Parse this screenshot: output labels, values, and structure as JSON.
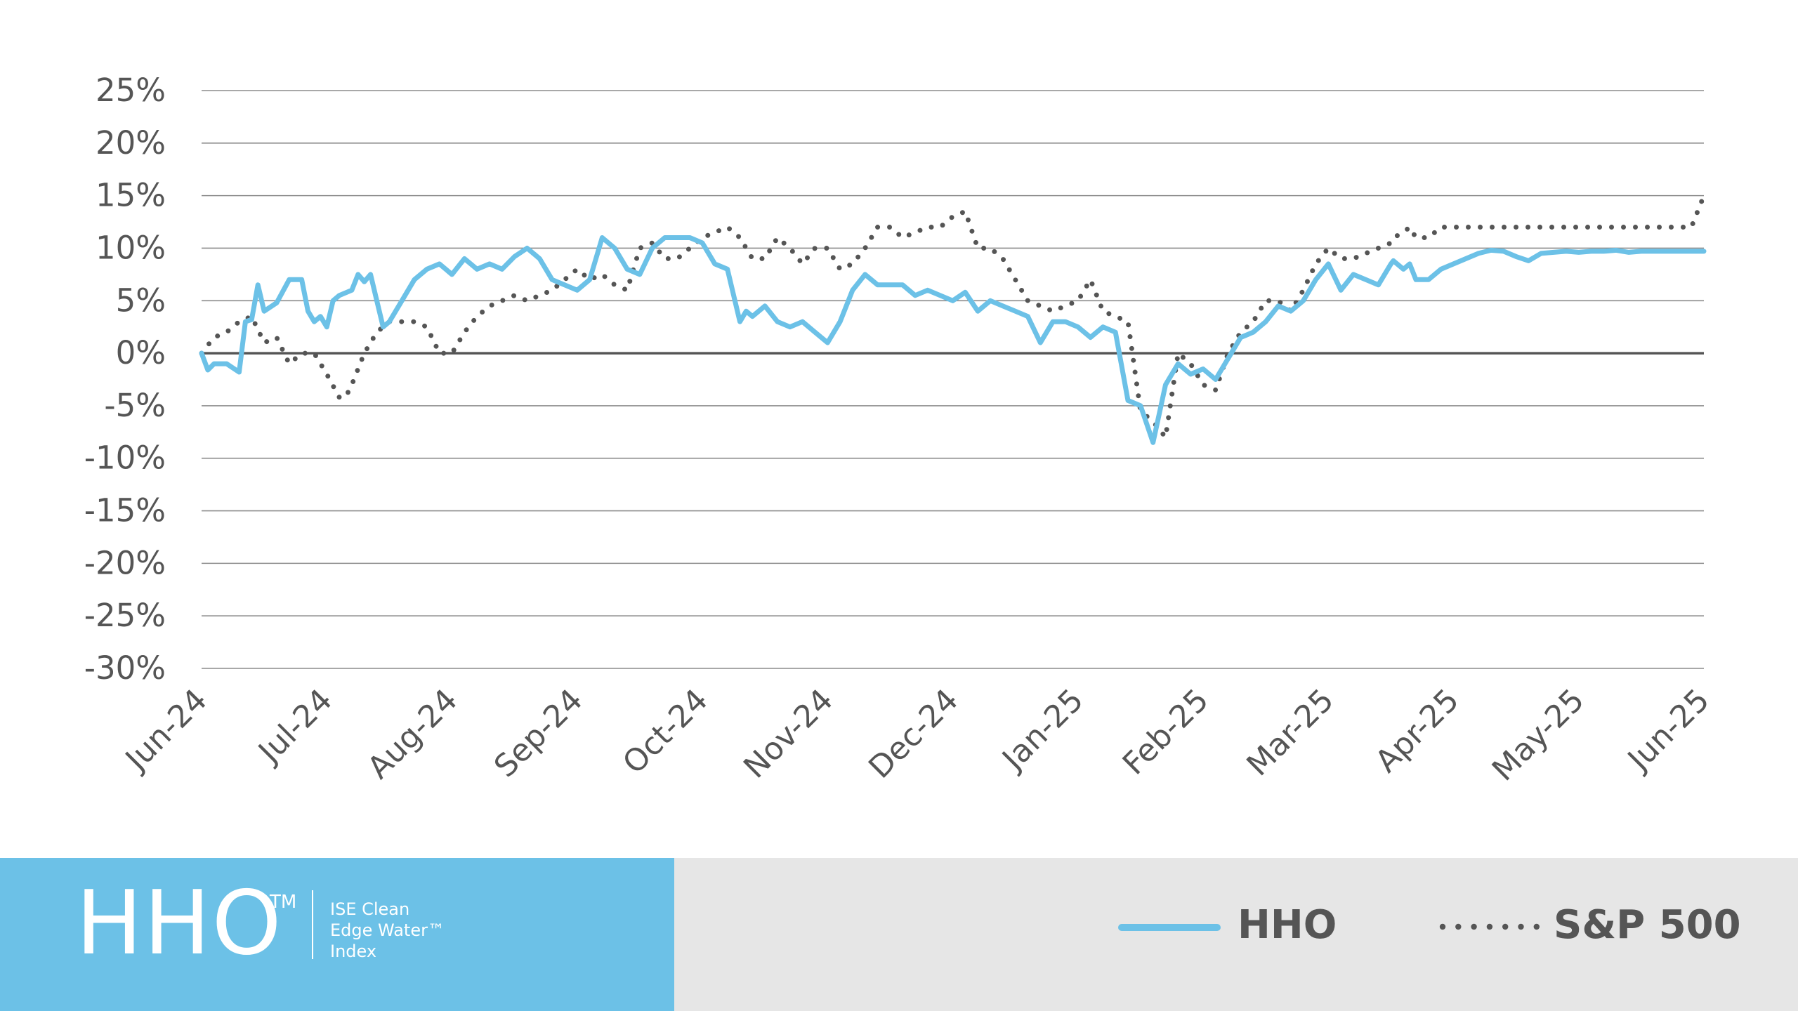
{
  "colors": {
    "hho": "#6cc1e7",
    "sp500": "#555555",
    "grid": "#8c8c8c",
    "zero_line": "#555555",
    "footer_left_bg": "#6cc1e7",
    "footer_right_bg": "#e6e6e6",
    "text": "#555555"
  },
  "branding": {
    "ticker": "HHO",
    "trademark": "TM",
    "index_line1": "ISE Clean",
    "index_line2": "Edge Water™",
    "index_line3": "Index"
  },
  "legend": {
    "hho_label": "HHO",
    "sp500_label": "S&P 500",
    "placement": "bottom-right"
  },
  "chart_data": {
    "type": "line",
    "title": "",
    "xlabel": "",
    "ylabel": "",
    "ylim": [
      -30,
      25
    ],
    "y_ticks": [
      25,
      20,
      15,
      10,
      5,
      0,
      -5,
      -10,
      -15,
      -20,
      -25,
      -30
    ],
    "y_tick_labels": [
      "25%",
      "20%",
      "15%",
      "10%",
      "5%",
      "0%",
      "-5%",
      "-10%",
      "-15%",
      "-20%",
      "-25%",
      "-30%"
    ],
    "x_tick_labels": [
      "Jun-24",
      "Jul-24",
      "Aug-24",
      "Sep-24",
      "Oct-24",
      "Nov-24",
      "Dec-24",
      "Jan-25",
      "Feb-25",
      "Mar-25",
      "Apr-25",
      "May-25",
      "Jun-25"
    ],
    "grid": true,
    "series": [
      {
        "name": "HHO",
        "style": "solid",
        "x": [
          0,
          0.05,
          0.1,
          0.2,
          0.3,
          0.35,
          0.4,
          0.45,
          0.5,
          0.6,
          0.7,
          0.8,
          0.85,
          0.9,
          0.95,
          1,
          1.05,
          1.1,
          1.2,
          1.25,
          1.3,
          1.35,
          1.4,
          1.45,
          1.5,
          1.6,
          1.7,
          1.8,
          1.9,
          2,
          2.1,
          2.2,
          2.3,
          2.4,
          2.5,
          2.6,
          2.7,
          2.8,
          2.9,
          3,
          3.1,
          3.2,
          3.3,
          3.4,
          3.5,
          3.6,
          3.7,
          3.8,
          3.9,
          4,
          4.1,
          4.2,
          4.3,
          4.35,
          4.4,
          4.5,
          4.6,
          4.7,
          4.8,
          4.9,
          5,
          5.1,
          5.2,
          5.3,
          5.4,
          5.5,
          5.6,
          5.7,
          5.8,
          5.9,
          6,
          6.1,
          6.2,
          6.3,
          6.4,
          6.5,
          6.6,
          6.7,
          6.8,
          6.9,
          7,
          7.1,
          7.2,
          7.3,
          7.4,
          7.5,
          7.6,
          7.7,
          7.8,
          7.9,
          8,
          8.1,
          8.2,
          8.3,
          8.4,
          8.5,
          8.6,
          8.7,
          8.8,
          8.9,
          9,
          9.1,
          9.2,
          9.3,
          9.4,
          9.5,
          9.52,
          9.6,
          9.65,
          9.7,
          9.8,
          9.9,
          10,
          10.1,
          10.2,
          10.3,
          10.4,
          10.5,
          10.6,
          10.7,
          10.8,
          10.9,
          11,
          11.1,
          11.2,
          11.3,
          11.4,
          11.5,
          11.6,
          11.7,
          11.8,
          11.9,
          12
        ],
        "y": [
          0,
          -1.6,
          -1,
          -1,
          -1.8,
          3,
          3.2,
          6.5,
          4,
          4.8,
          7,
          7,
          4,
          3,
          3.5,
          2.5,
          5,
          5.5,
          6,
          7.5,
          6.8,
          7.5,
          5,
          2.5,
          3,
          5,
          7,
          8,
          8.5,
          7.5,
          9,
          8,
          8.5,
          8,
          9.2,
          10,
          9,
          7,
          6.5,
          6,
          7,
          11,
          10,
          8,
          7.5,
          10,
          11,
          11,
          11,
          10.5,
          8.5,
          8,
          3,
          4,
          3.5,
          4.5,
          3,
          2.5,
          3,
          2,
          1,
          3,
          6,
          7.5,
          6.5,
          6.5,
          6.5,
          5.5,
          6,
          5.5,
          5,
          5.8,
          4,
          5,
          4.5,
          4,
          3.5,
          1,
          3,
          3,
          2.5,
          1.5,
          2.5,
          2,
          -4.5,
          -5,
          -8.5,
          -3,
          -1,
          -2,
          -1.5,
          -2.5,
          -0.5,
          1.5,
          2,
          3,
          4.5,
          4,
          5,
          7,
          8.5,
          6,
          7.5,
          7,
          6.5,
          8.5,
          8.8,
          8,
          8.5,
          7,
          7,
          8,
          8.5,
          9,
          9.5,
          9.8,
          9.7,
          9.2,
          8.8,
          9.5,
          9.6,
          9.7,
          9.6,
          9.7,
          9.7,
          9.8,
          9.6,
          9.7,
          9.7,
          9.7,
          9.7,
          9.7,
          9.7
        ],
        "note_hidden": ""
      },
      {
        "name": "S&P 500",
        "style": "dotted",
        "x": [
          0,
          0.1,
          0.2,
          0.3,
          0.4,
          0.5,
          0.6,
          0.7,
          0.8,
          0.9,
          1,
          1.1,
          1.15,
          1.2,
          1.25,
          1.3,
          1.4,
          1.5,
          1.6,
          1.7,
          1.8,
          1.9,
          2,
          2.1,
          2.2,
          2.3,
          2.4,
          2.5,
          2.6,
          2.7,
          2.8,
          2.9,
          3,
          3.1,
          3.2,
          3.3,
          3.4,
          3.5,
          3.6,
          3.7,
          3.8,
          3.9,
          4,
          4.1,
          4.2,
          4.3,
          4.4,
          4.5,
          4.6,
          4.7,
          4.8,
          4.9,
          5,
          5.1,
          5.2,
          5.3,
          5.4,
          5.5,
          5.6,
          5.7,
          5.8,
          5.9,
          6,
          6.1,
          6.2,
          6.3,
          6.4,
          6.5,
          6.6,
          6.7,
          6.8,
          6.9,
          7,
          7.1,
          7.2,
          7.3,
          7.4,
          7.5,
          7.6,
          7.7,
          7.8,
          7.9,
          8,
          8.1,
          8.2,
          8.3,
          8.4,
          8.5,
          8.6,
          8.7,
          8.8,
          8.9,
          9,
          9.1,
          9.2,
          9.3,
          9.4,
          9.5,
          9.52,
          9.6,
          9.65,
          9.7,
          9.8,
          9.9,
          10,
          10.1,
          10.2,
          10.3,
          10.4,
          10.5,
          10.6,
          10.7,
          10.8,
          10.9,
          11,
          11.1,
          11.2,
          11.3,
          11.4,
          11.5,
          11.6,
          11.7,
          11.8,
          11.9,
          12
        ],
        "y": [
          0,
          1.5,
          2,
          3,
          3.5,
          1,
          1.5,
          -1,
          0,
          0,
          -2,
          -4.2,
          -4.2,
          -3,
          -1.5,
          0,
          2,
          3,
          3,
          3,
          2.5,
          0,
          0,
          2,
          3.5,
          4.5,
          5,
          5.5,
          5,
          5.5,
          6,
          7,
          8,
          7,
          7.5,
          6.5,
          6,
          10,
          10.5,
          9,
          9,
          10,
          11,
          11.5,
          12,
          11,
          9,
          9,
          11,
          10,
          8.5,
          10,
          10,
          8,
          8.5,
          10,
          12,
          12,
          11,
          11.5,
          12,
          12,
          13,
          13.5,
          10,
          10,
          9,
          7,
          5,
          4.5,
          4,
          4.5,
          5,
          7,
          4,
          3.5,
          3,
          -5.5,
          -6.5,
          -8,
          0,
          -1,
          -3,
          -3.5,
          0,
          2,
          3,
          5,
          5,
          4,
          6,
          8.5,
          10,
          9,
          9,
          9.5,
          10,
          10.5,
          11,
          11.5,
          12,
          11,
          11,
          12,
          12,
          12,
          12,
          12,
          12,
          12,
          12,
          12,
          12,
          12,
          12,
          12,
          12,
          12,
          12,
          12,
          12,
          12,
          12,
          12,
          15
        ]
      }
    ]
  }
}
